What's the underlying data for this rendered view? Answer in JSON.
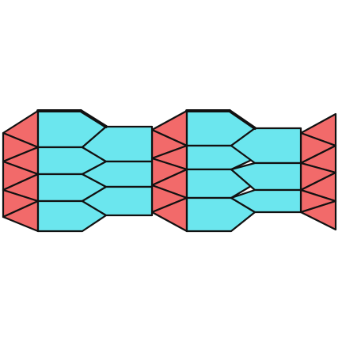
{
  "diagram": {
    "description_type": "3d-polyhedral-tiling",
    "colors": {
      "red_triangle": "#f26a6a",
      "cyan_pentagon": "#6be6ee",
      "outline": "#111111",
      "background": "#ffffff",
      "edge_highlight": "#9fd8f0"
    }
  }
}
